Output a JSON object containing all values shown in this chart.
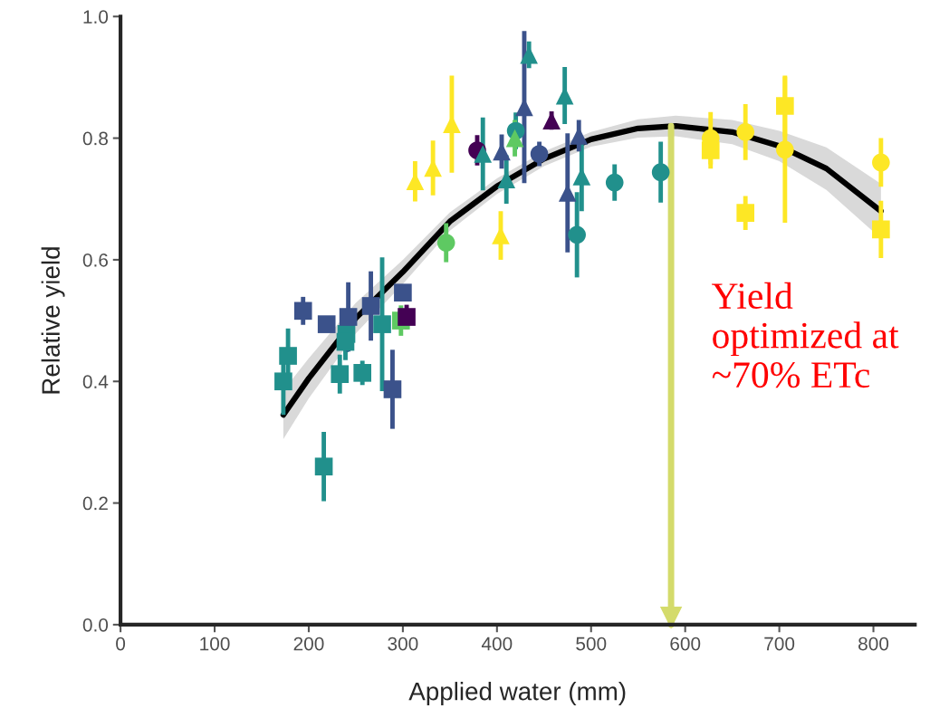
{
  "chart_data": {
    "type": "scatter",
    "xlabel": "Applied water (mm)",
    "ylabel": "Relative yield",
    "xlim": [
      0,
      844
    ],
    "xticks": [
      0,
      100,
      200,
      300,
      400,
      500,
      600,
      700,
      800
    ],
    "ylim": [
      0,
      1.0
    ],
    "yticks": [
      {
        "value": 0,
        "label": "0.0"
      },
      {
        "value": 0.2,
        "label": "0.2"
      },
      {
        "value": 0.4,
        "label": "0.4"
      },
      {
        "value": 0.6,
        "label": "0.6"
      },
      {
        "value": 0.8,
        "label": "0.8"
      },
      {
        "value": 1.0,
        "label": "1.0"
      }
    ],
    "grid": false,
    "legend": false,
    "ref_lines": [
      {
        "axis": "x",
        "value": 585,
        "label": "Yield optimized at ~70% ETc",
        "color": "#d4db6b"
      }
    ],
    "series": [
      {
        "type": "line",
        "color": "#000000",
        "marker": "none",
        "x": [
          173,
          200,
          250,
          300,
          350,
          400,
          450,
          500,
          550,
          590,
          650,
          700,
          750,
          808
        ],
        "values": [
          0.345,
          0.405,
          0.504,
          0.58,
          0.663,
          0.721,
          0.766,
          0.798,
          0.816,
          0.82,
          0.81,
          0.787,
          0.75,
          0.68
        ],
        "lower": [
          0.305,
          0.372,
          0.479,
          0.56,
          0.648,
          0.708,
          0.754,
          0.786,
          0.801,
          0.803,
          0.79,
          0.762,
          0.715,
          0.635
        ],
        "upper": [
          0.385,
          0.438,
          0.529,
          0.6,
          0.678,
          0.734,
          0.778,
          0.81,
          0.831,
          0.837,
          0.83,
          0.812,
          0.785,
          0.725
        ]
      },
      {
        "color": "#21908c",
        "marker": "square",
        "x": [
          173,
          178,
          216,
          233,
          240,
          239,
          257,
          278
        ],
        "values": [
          0.4,
          0.442,
          0.26,
          0.412,
          0.478,
          0.465,
          0.414,
          0.494
        ],
        "errors": [
          0.055,
          0.045,
          0.057,
          0.032,
          0.03,
          0.03,
          0.02,
          0.11
        ]
      },
      {
        "color": "#3b528b",
        "marker": "square",
        "x": [
          194,
          219,
          242,
          266,
          300,
          289
        ],
        "values": [
          0.516,
          0.494,
          0.506,
          0.524,
          0.546,
          0.387
        ],
        "errors": [
          0.023,
          0.01,
          0.057,
          0.057,
          0.01,
          0.065
        ]
      },
      {
        "color": "#5ec962",
        "marker": "square",
        "x": [
          298
        ],
        "values": [
          0.5
        ],
        "errors": [
          0.025
        ]
      },
      {
        "color": "#440154",
        "marker": "square",
        "x": [
          304
        ],
        "values": [
          0.506
        ],
        "errors": [
          0.02
        ]
      },
      {
        "color": "#fde725",
        "marker": "square",
        "x": [
          627,
          706,
          664,
          808
        ],
        "values": [
          0.78,
          0.853,
          0.677,
          0.65
        ],
        "errors": [
          0.03,
          0.05,
          0.028,
          0.047
        ]
      },
      {
        "color": "#21908c",
        "marker": "circle",
        "x": [
          420,
          485,
          525,
          574
        ],
        "values": [
          0.812,
          0.641,
          0.727,
          0.744
        ],
        "errors": [
          0.03,
          0.07,
          0.03,
          0.05
        ]
      },
      {
        "color": "#3b528b",
        "marker": "circle",
        "x": [
          445
        ],
        "values": [
          0.774
        ],
        "errors": [
          0.02
        ]
      },
      {
        "color": "#440154",
        "marker": "circle",
        "x": [
          379
        ],
        "values": [
          0.78
        ],
        "errors": [
          0.025
        ]
      },
      {
        "color": "#5ec962",
        "marker": "circle",
        "x": [
          346
        ],
        "values": [
          0.628
        ],
        "errors": [
          0.032
        ]
      },
      {
        "color": "#fde725",
        "marker": "circle",
        "x": [
          627,
          664,
          706,
          808
        ],
        "values": [
          0.8,
          0.81,
          0.781,
          0.76
        ],
        "errors": [
          0.043,
          0.046,
          0.12,
          0.04
        ]
      },
      {
        "color": "#21908c",
        "marker": "triangle",
        "x": [
          385,
          410,
          434,
          472,
          490
        ],
        "values": [
          0.774,
          0.732,
          0.937,
          0.87,
          0.737
        ],
        "errors": [
          0.06,
          0.04,
          0.022,
          0.047,
          0.057
        ]
      },
      {
        "color": "#3b528b",
        "marker": "triangle",
        "x": [
          429,
          405,
          487,
          475
        ],
        "values": [
          0.851,
          0.778,
          0.804,
          0.71
        ],
        "errors": [
          0.125,
          0.028,
          0.026,
          0.098
        ]
      },
      {
        "color": "#440154",
        "marker": "triangle",
        "x": [
          458
        ],
        "values": [
          0.829
        ],
        "errors": [
          0.015
        ]
      },
      {
        "color": "#5ec962",
        "marker": "triangle",
        "x": [
          419
        ],
        "values": [
          0.8
        ],
        "errors": [
          0.03
        ]
      },
      {
        "color": "#fde725",
        "marker": "triangle",
        "x": [
          313,
          332,
          352,
          404
        ],
        "values": [
          0.729,
          0.751,
          0.823,
          0.64
        ],
        "errors": [
          0.033,
          0.045,
          0.08,
          0.04
        ]
      }
    ]
  }
}
